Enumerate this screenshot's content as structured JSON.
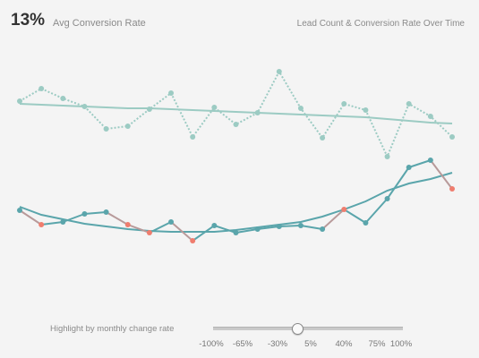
{
  "kpi": {
    "value": "13%",
    "label": "Avg Conversion Rate"
  },
  "title": "Lead Count & Conversion Rate Over Time",
  "slider": {
    "label": "Highlight by monthly change rate",
    "ticks": [
      "-100%",
      "-65%",
      "-30%",
      "5%",
      "40%",
      "75%",
      "100%"
    ],
    "value": "5%"
  },
  "colors": {
    "conversion_line": "#9ccbc3",
    "lead_line": "#5aa5ab",
    "highlight_decline": "#ef7d6e",
    "segment_decline": "#b89a9a",
    "background": "#f4f4f4"
  },
  "chart_data": {
    "type": "line",
    "x": [
      1,
      2,
      3,
      4,
      5,
      6,
      7,
      8,
      9,
      10,
      11,
      12,
      13,
      14,
      15,
      16,
      17,
      18,
      19,
      20,
      21
    ],
    "series": [
      {
        "values": [
          113,
          99,
          110,
          119,
          144,
          141,
          122,
          104,
          153,
          120,
          139,
          126,
          80,
          121,
          154,
          116,
          123,
          175,
          116,
          130,
          153
        ],
        "trend": [
          116,
          117,
          118,
          119,
          120,
          121,
          121,
          122,
          123,
          124,
          125,
          126,
          127,
          128,
          129,
          130,
          131,
          133,
          135,
          137,
          138
        ]
      },
      {
        "values": [
          235,
          251,
          248,
          239,
          237,
          251,
          260,
          248,
          269,
          252,
          260,
          256,
          253,
          252,
          256,
          234,
          249,
          222,
          187,
          179,
          211
        ],
        "trend": [
          231,
          240,
          245,
          250,
          253,
          256,
          258,
          259,
          259,
          259,
          257,
          254,
          251,
          248,
          242,
          234,
          225,
          213,
          205,
          200,
          193
        ]
      }
    ],
    "highlight_points": {
      "series": 1,
      "indices": [
        1,
        5,
        6,
        8,
        15,
        20
      ]
    }
  }
}
